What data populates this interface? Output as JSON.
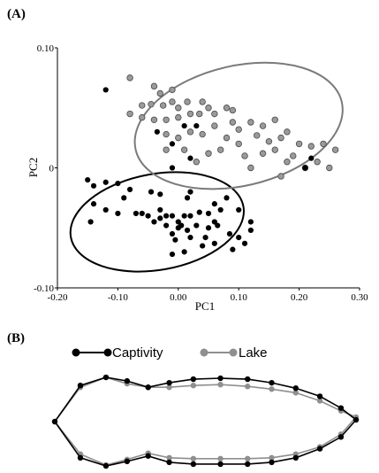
{
  "chart_data": [
    {
      "panel_label": "(A)",
      "type": "scatter",
      "xlabel": "PC1",
      "ylabel": "PC2",
      "xlim": [
        -0.2,
        0.3
      ],
      "ylim": [
        -0.1,
        0.1
      ],
      "x_ticks": [
        -0.2,
        -0.1,
        0.0,
        0.1,
        0.2,
        0.3
      ],
      "x_tick_labels": [
        "-0.20",
        "-0.10",
        "0.00",
        "0.10",
        "0.20",
        "0.30"
      ],
      "y_ticks": [
        0.1,
        0.0,
        -0.1
      ],
      "y_tick_labels": [
        "0.10",
        "0",
        "-0.10"
      ],
      "grid": false,
      "series": [
        {
          "name": "Captivity",
          "color": "#000000",
          "ellipse": {
            "center": [
              -0.035,
              -0.045
            ],
            "semi_axes": [
              0.145,
              0.04
            ],
            "angle_deg": -10
          },
          "points": [
            [
              -0.12,
              0.065
            ],
            [
              -0.035,
              0.03
            ],
            [
              0.01,
              0.035
            ],
            [
              -0.01,
              0.02
            ],
            [
              -0.15,
              -0.01
            ],
            [
              -0.14,
              -0.015
            ],
            [
              -0.12,
              -0.012
            ],
            [
              -0.08,
              -0.018
            ],
            [
              -0.1,
              -0.013
            ],
            [
              -0.045,
              -0.02
            ],
            [
              -0.03,
              -0.022
            ],
            [
              0.02,
              -0.02
            ],
            [
              -0.14,
              -0.03
            ],
            [
              -0.12,
              -0.035
            ],
            [
              -0.1,
              -0.038
            ],
            [
              -0.07,
              -0.038
            ],
            [
              -0.06,
              -0.038
            ],
            [
              -0.03,
              -0.035
            ],
            [
              -0.02,
              -0.04
            ],
            [
              -0.01,
              -0.04
            ],
            [
              0.0,
              -0.045
            ],
            [
              0.01,
              -0.04
            ],
            [
              0.02,
              -0.04
            ],
            [
              0.035,
              -0.037
            ],
            [
              0.05,
              -0.038
            ],
            [
              0.07,
              -0.035
            ],
            [
              0.1,
              -0.035
            ],
            [
              -0.145,
              -0.045
            ],
            [
              -0.05,
              -0.04
            ],
            [
              -0.04,
              -0.045
            ],
            [
              -0.03,
              -0.042
            ],
            [
              -0.02,
              -0.048
            ],
            [
              0.0,
              -0.05
            ],
            [
              0.005,
              -0.048
            ],
            [
              0.015,
              -0.052
            ],
            [
              0.03,
              -0.048
            ],
            [
              0.05,
              -0.05
            ],
            [
              0.065,
              -0.048
            ],
            [
              0.085,
              -0.055
            ],
            [
              0.12,
              -0.045
            ],
            [
              0.12,
              -0.052
            ],
            [
              -0.01,
              -0.055
            ],
            [
              0.02,
              -0.058
            ],
            [
              0.045,
              -0.058
            ],
            [
              0.1,
              -0.058
            ],
            [
              0.06,
              -0.063
            ],
            [
              0.09,
              -0.068
            ],
            [
              -0.01,
              -0.072
            ],
            [
              0.01,
              -0.07
            ],
            [
              0.04,
              -0.065
            ],
            [
              0.11,
              -0.063
            ],
            [
              -0.005,
              -0.06
            ],
            [
              0.06,
              -0.03
            ],
            [
              0.015,
              -0.025
            ],
            [
              0.08,
              -0.025
            ],
            [
              -0.09,
              -0.025
            ],
            [
              0.22,
              0.008
            ],
            [
              0.02,
              0.008
            ],
            [
              0.21,
              0.0
            ]
          ]
        },
        {
          "name": "Lake",
          "color": "#999999",
          "ellipse": {
            "center": [
              0.1,
              0.035
            ],
            "semi_axes": [
              0.175,
              0.05
            ],
            "angle_deg": -13
          },
          "points": [
            [
              -0.08,
              0.075
            ],
            [
              -0.04,
              0.068
            ],
            [
              -0.03,
              0.062
            ],
            [
              -0.01,
              0.065
            ],
            [
              -0.06,
              0.052
            ],
            [
              -0.045,
              0.053
            ],
            [
              -0.025,
              0.052
            ],
            [
              -0.01,
              0.055
            ],
            [
              0.0,
              0.05
            ],
            [
              0.015,
              0.055
            ],
            [
              0.04,
              0.055
            ],
            [
              0.05,
              0.05
            ],
            [
              0.06,
              0.045
            ],
            [
              0.08,
              0.05
            ],
            [
              0.09,
              0.048
            ],
            [
              -0.08,
              0.045
            ],
            [
              -0.06,
              0.042
            ],
            [
              -0.04,
              0.04
            ],
            [
              -0.02,
              0.04
            ],
            [
              0.0,
              0.042
            ],
            [
              0.02,
              0.045
            ],
            [
              0.035,
              0.045
            ],
            [
              0.06,
              0.035
            ],
            [
              0.09,
              0.038
            ],
            [
              0.1,
              0.032
            ],
            [
              0.12,
              0.038
            ],
            [
              0.14,
              0.035
            ],
            [
              0.16,
              0.04
            ],
            [
              -0.02,
              0.028
            ],
            [
              0.0,
              0.025
            ],
            [
              0.02,
              0.03
            ],
            [
              0.04,
              0.028
            ],
            [
              0.08,
              0.025
            ],
            [
              0.1,
              0.02
            ],
            [
              0.13,
              0.027
            ],
            [
              0.15,
              0.022
            ],
            [
              0.17,
              0.025
            ],
            [
              0.18,
              0.03
            ],
            [
              0.2,
              0.02
            ],
            [
              0.22,
              0.018
            ],
            [
              0.24,
              0.02
            ],
            [
              -0.02,
              0.015
            ],
            [
              0.01,
              0.015
            ],
            [
              0.05,
              0.012
            ],
            [
              0.07,
              0.015
            ],
            [
              0.11,
              0.01
            ],
            [
              0.14,
              0.012
            ],
            [
              0.16,
              0.015
            ],
            [
              0.19,
              0.01
            ],
            [
              0.23,
              0.005
            ],
            [
              0.26,
              0.015
            ],
            [
              0.18,
              0.005
            ],
            [
              0.21,
              0.0
            ],
            [
              0.25,
              0.0
            ],
            [
              0.17,
              -0.007
            ],
            [
              0.03,
              0.005
            ],
            [
              0.12,
              0.0
            ]
          ]
        }
      ],
      "extra_points_black": [
        [
          -0.01,
          0.0
        ],
        [
          0.06,
          -0.045
        ],
        [
          0.03,
          0.035
        ]
      ]
    },
    {
      "panel_label": "(B)",
      "type": "line",
      "legend_placement": "top-left",
      "series": [
        {
          "name": "Captivity",
          "color": "#000000",
          "points": [
            [
              0.0,
              0.5
            ],
            [
              0.085,
              0.9
            ],
            [
              0.17,
              0.99
            ],
            [
              0.24,
              0.95
            ],
            [
              0.31,
              0.88
            ],
            [
              0.38,
              0.93
            ],
            [
              0.46,
              0.97
            ],
            [
              0.55,
              0.98
            ],
            [
              0.64,
              0.97
            ],
            [
              0.72,
              0.93
            ],
            [
              0.8,
              0.87
            ],
            [
              0.88,
              0.78
            ],
            [
              0.95,
              0.65
            ],
            [
              1.0,
              0.52
            ],
            [
              0.95,
              0.33
            ],
            [
              0.88,
              0.2
            ],
            [
              0.8,
              0.1
            ],
            [
              0.72,
              0.05
            ],
            [
              0.64,
              0.03
            ],
            [
              0.55,
              0.03
            ],
            [
              0.46,
              0.03
            ],
            [
              0.38,
              0.05
            ],
            [
              0.31,
              0.12
            ],
            [
              0.24,
              0.06
            ],
            [
              0.17,
              0.01
            ],
            [
              0.085,
              0.1
            ],
            [
              0.0,
              0.5
            ]
          ]
        },
        {
          "name": "Lake",
          "color": "#8f8f8f",
          "points": [
            [
              0.0,
              0.5
            ],
            [
              0.085,
              0.88
            ],
            [
              0.17,
              0.99
            ],
            [
              0.24,
              0.92
            ],
            [
              0.31,
              0.88
            ],
            [
              0.38,
              0.88
            ],
            [
              0.46,
              0.9
            ],
            [
              0.55,
              0.91
            ],
            [
              0.64,
              0.89
            ],
            [
              0.72,
              0.86
            ],
            [
              0.8,
              0.82
            ],
            [
              0.88,
              0.73
            ],
            [
              0.95,
              0.62
            ],
            [
              1.0,
              0.55
            ],
            [
              0.95,
              0.36
            ],
            [
              0.88,
              0.22
            ],
            [
              0.8,
              0.14
            ],
            [
              0.72,
              0.1
            ],
            [
              0.64,
              0.09
            ],
            [
              0.55,
              0.09
            ],
            [
              0.46,
              0.09
            ],
            [
              0.38,
              0.1
            ],
            [
              0.31,
              0.15
            ],
            [
              0.24,
              0.08
            ],
            [
              0.17,
              0.02
            ],
            [
              0.085,
              0.14
            ],
            [
              0.0,
              0.5
            ]
          ]
        }
      ]
    }
  ]
}
